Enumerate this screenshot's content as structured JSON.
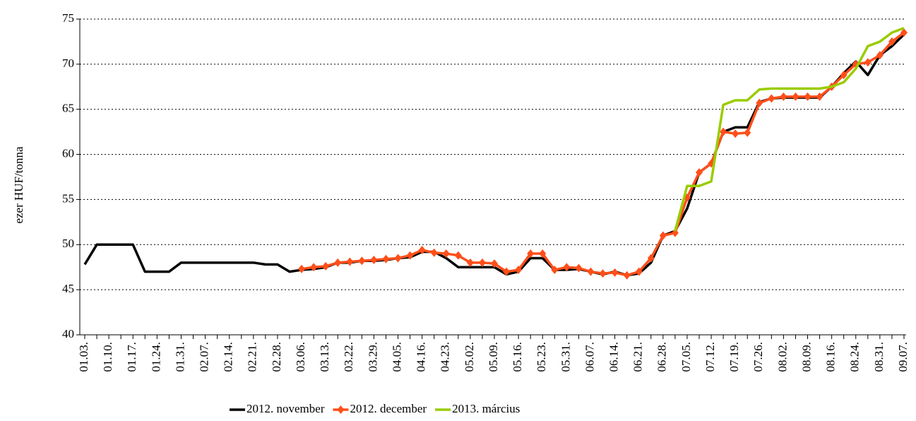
{
  "chart_data": {
    "type": "line",
    "y_label": "ezer HUF/tonna",
    "categories": [
      "01.03.",
      null,
      "01.10.",
      null,
      "01.17.",
      null,
      "01.24.",
      null,
      "01.31.",
      null,
      "02.07.",
      null,
      "02.14.",
      null,
      "02.21.",
      null,
      "02.28.",
      null,
      "03.06.",
      null,
      "03.13.",
      null,
      "03.22.",
      null,
      "03.29.",
      null,
      "04.05.",
      null,
      "04.16.",
      null,
      "04.23.",
      null,
      "05.02.",
      null,
      "05.09.",
      null,
      "05.16.",
      null,
      "05.23.",
      null,
      "05.31.",
      null,
      "06.07.",
      null,
      "06.14.",
      null,
      "06.21.",
      null,
      "06.28.",
      null,
      "07.05.",
      null,
      "07.12.",
      null,
      "07.19.",
      null,
      "07.26.",
      null,
      "08.02.",
      null,
      "08.09.",
      null,
      "08.16.",
      null,
      "08.24.",
      null,
      "08.31.",
      null,
      "09.07."
    ],
    "series": [
      {
        "name": "2012. november",
        "color": "#000000",
        "marker": false,
        "values": [
          47.8,
          50,
          50,
          50,
          50,
          47,
          47,
          47,
          48,
          48,
          48,
          48,
          48,
          48,
          48,
          47.8,
          47.8,
          47,
          47.2,
          47.3,
          47.5,
          48,
          48,
          48.2,
          48.2,
          48.3,
          48.5,
          48.6,
          49.2,
          49.2,
          48.5,
          47.5,
          47.5,
          47.5,
          47.5,
          46.7,
          47,
          48.5,
          48.5,
          47.2,
          47.2,
          47.3,
          47,
          46.7,
          47,
          46.6,
          46.8,
          48,
          51,
          51.5,
          54,
          58,
          59,
          62.5,
          63,
          63,
          65.8,
          66.2,
          66.3,
          66.3,
          66.3,
          66.3,
          67.5,
          69,
          70.3,
          68.8,
          71,
          72,
          73.3
        ]
      },
      {
        "name": "2012. december",
        "color": "#ff4f1a",
        "marker": true,
        "values": [
          null,
          null,
          null,
          null,
          null,
          null,
          null,
          null,
          null,
          null,
          null,
          null,
          null,
          null,
          null,
          null,
          null,
          null,
          47.3,
          47.5,
          47.6,
          48,
          48.1,
          48.2,
          48.3,
          48.4,
          48.5,
          48.8,
          49.4,
          49.1,
          49,
          48.8,
          48,
          48,
          47.9,
          47,
          47.2,
          49,
          49,
          47.2,
          47.5,
          47.4,
          47,
          46.8,
          46.9,
          46.6,
          47,
          48.5,
          51,
          51.3,
          55.2,
          58,
          59,
          62.5,
          62.3,
          62.4,
          65.7,
          66.2,
          66.4,
          66.4,
          66.4,
          66.4,
          67.5,
          68.8,
          70,
          70.2,
          71,
          72.5,
          73.5
        ]
      },
      {
        "name": "2013. március",
        "color": "#99cc00",
        "marker": false,
        "values": [
          null,
          null,
          null,
          null,
          null,
          null,
          null,
          null,
          null,
          null,
          null,
          null,
          null,
          null,
          null,
          null,
          null,
          null,
          null,
          null,
          null,
          null,
          null,
          null,
          null,
          null,
          null,
          null,
          null,
          null,
          null,
          null,
          null,
          null,
          null,
          null,
          null,
          null,
          null,
          null,
          null,
          null,
          null,
          null,
          null,
          null,
          null,
          null,
          null,
          51.5,
          56.5,
          56.5,
          57,
          65.5,
          66,
          66,
          67.2,
          67.3,
          67.3,
          67.3,
          67.3,
          67.3,
          67.5,
          68,
          69.5,
          72,
          72.5,
          73.5,
          74
        ]
      }
    ],
    "ylim": [
      40,
      75
    ],
    "yticks": [
      40,
      45,
      50,
      55,
      60,
      65,
      70,
      75
    ],
    "grid": true,
    "legend": "bottom"
  }
}
